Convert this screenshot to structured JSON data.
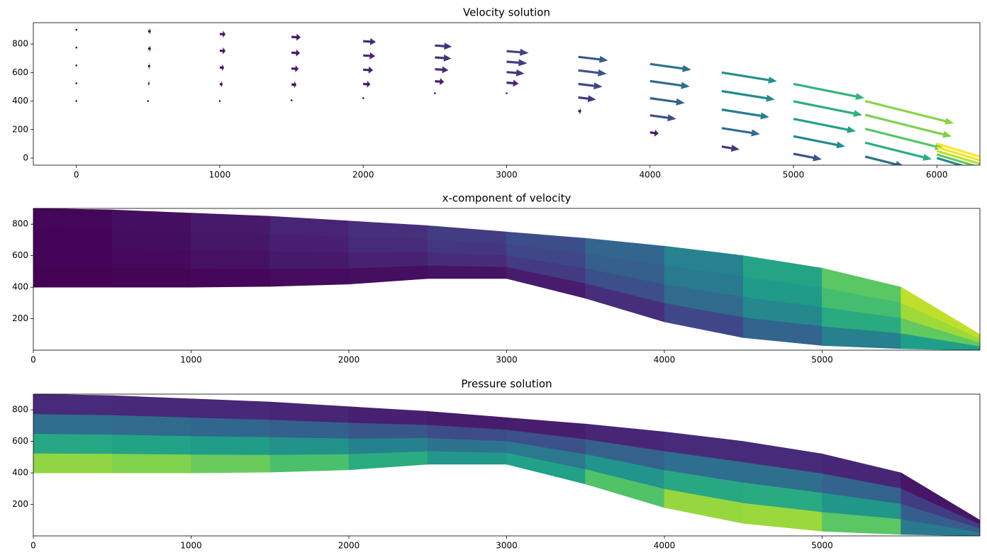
{
  "chart_data": [
    {
      "type": "quiver",
      "title": "Velocity solution",
      "xlim": [
        -300,
        6300
      ],
      "ylim": [
        -50,
        950
      ],
      "xticks": [
        0,
        1000,
        2000,
        3000,
        4000,
        5000,
        6000
      ],
      "yticks": [
        0,
        200,
        400,
        600,
        800
      ],
      "x": [
        0,
        500,
        1000,
        1500,
        2000,
        2500,
        3000,
        3500,
        4000,
        4500,
        5000,
        5500,
        6000
      ],
      "y": [
        [
          400,
          400,
          400,
          405,
          420,
          455,
          455,
          330,
          180,
          80,
          30,
          10,
          0
        ],
        [
          525,
          523,
          518,
          516,
          520,
          539,
          529,
          425,
          300,
          210,
          153,
          108,
          25
        ],
        [
          650,
          645,
          635,
          628,
          620,
          623,
          603,
          520,
          420,
          340,
          275,
          205,
          50
        ],
        [
          775,
          768,
          753,
          739,
          720,
          706,
          676,
          615,
          540,
          470,
          398,
          303,
          75
        ],
        [
          900,
          890,
          870,
          850,
          820,
          790,
          750,
          710,
          660,
          600,
          520,
          400,
          100
        ]
      ],
      "u": [
        [
          0,
          0,
          0,
          0,
          0,
          0,
          0,
          4,
          12,
          25,
          40,
          55,
          70
        ],
        [
          0,
          2,
          4,
          7,
          10,
          13,
          17,
          25,
          37,
          54,
          73,
          94,
          114
        ],
        [
          0,
          3,
          6,
          10,
          14,
          19,
          25,
          34,
          49,
          67,
          88,
          111,
          134
        ],
        [
          0,
          4,
          8,
          12,
          17,
          23,
          29,
          40,
          56,
          75,
          97,
          122,
          146
        ],
        [
          0,
          4,
          8,
          13,
          18,
          24,
          31,
          42,
          58,
          78,
          100,
          125,
          150
        ]
      ],
      "v": [
        [
          0,
          0,
          0,
          0,
          0,
          0,
          0,
          -0.5,
          -1.7,
          -4,
          -8,
          -13.8,
          -21
        ],
        [
          0,
          -0.1,
          -0.2,
          -0.4,
          -0.6,
          -0.9,
          -1.4,
          -3,
          -5.2,
          -8.6,
          -14.6,
          -23.5,
          -34.2
        ],
        [
          0,
          -0.1,
          -0.2,
          -0.5,
          -0.8,
          -1.3,
          -2,
          -4.1,
          -6.9,
          -10.7,
          -17.6,
          -27.8,
          -40.2
        ],
        [
          0,
          -0.1,
          -0.3,
          -0.6,
          -1,
          -1.6,
          -2.3,
          -4.8,
          -7.8,
          -12,
          -19.4,
          -30.5,
          -43.8
        ],
        [
          0,
          -0.1,
          -0.3,
          -0.7,
          -1.1,
          -1.7,
          -2.5,
          -5,
          -8.1,
          -12.5,
          -20,
          -31.3,
          -45
        ]
      ],
      "colormap": "viridis"
    },
    {
      "type": "contourf",
      "title": "x-component of velocity",
      "xlim": [
        0,
        6000
      ],
      "ylim": [
        0,
        900
      ],
      "xticks": [
        0,
        1000,
        2000,
        3000,
        4000,
        5000
      ],
      "yticks": [
        200,
        400,
        600,
        800
      ],
      "x": [
        0,
        500,
        1000,
        1500,
        2000,
        2500,
        3000,
        3500,
        4000,
        4500,
        5000,
        5500,
        6000
      ],
      "y": [
        [
          400,
          400,
          400,
          405,
          420,
          455,
          455,
          330,
          180,
          80,
          30,
          10,
          0
        ],
        [
          525,
          523,
          518,
          516,
          520,
          539,
          529,
          425,
          300,
          210,
          153,
          108,
          25
        ],
        [
          650,
          645,
          635,
          628,
          620,
          623,
          603,
          520,
          420,
          340,
          275,
          205,
          50
        ],
        [
          775,
          768,
          753,
          739,
          720,
          706,
          676,
          615,
          540,
          470,
          398,
          303,
          75
        ],
        [
          900,
          890,
          870,
          850,
          820,
          790,
          750,
          710,
          660,
          600,
          520,
          400,
          100
        ]
      ],
      "values": [
        [
          0,
          0,
          0,
          0,
          0,
          0,
          0,
          4,
          12,
          25,
          40,
          55,
          70
        ],
        [
          0,
          2,
          4,
          7,
          10,
          13,
          17,
          25,
          37,
          54,
          73,
          94,
          114
        ],
        [
          0,
          3,
          6,
          10,
          14,
          19,
          25,
          34,
          49,
          67,
          88,
          111,
          134
        ],
        [
          0,
          4,
          8,
          12,
          17,
          23,
          29,
          40,
          56,
          75,
          97,
          122,
          146
        ],
        [
          0,
          4,
          8,
          13,
          18,
          24,
          31,
          42,
          58,
          78,
          100,
          125,
          150
        ]
      ],
      "colormap": "viridis"
    },
    {
      "type": "contourf",
      "title": "Pressure solution",
      "xlim": [
        0,
        6000
      ],
      "ylim": [
        0,
        900
      ],
      "xticks": [
        0,
        1000,
        2000,
        3000,
        4000,
        5000
      ],
      "yticks": [
        200,
        400,
        600,
        800
      ],
      "x": [
        0,
        500,
        1000,
        1500,
        2000,
        2500,
        3000,
        3500,
        4000,
        4500,
        5000,
        5500,
        6000
      ],
      "y": [
        [
          400,
          400,
          400,
          405,
          420,
          455,
          455,
          330,
          180,
          80,
          30,
          10,
          0
        ],
        [
          525,
          523,
          518,
          516,
          520,
          539,
          529,
          425,
          300,
          210,
          153,
          108,
          25
        ],
        [
          650,
          645,
          635,
          628,
          620,
          623,
          603,
          520,
          420,
          340,
          275,
          205,
          50
        ],
        [
          775,
          768,
          753,
          739,
          720,
          706,
          676,
          615,
          540,
          470,
          398,
          303,
          75
        ],
        [
          900,
          890,
          870,
          850,
          820,
          790,
          750,
          710,
          660,
          600,
          520,
          400,
          100
        ]
      ],
      "values": [
        [
          4500,
          4410,
          4230,
          4005,
          3600,
          3015,
          2655,
          3420,
          4320,
          4680,
          4410,
          3510,
          900
        ],
        [
          3375,
          3308,
          3173,
          3004,
          2700,
          2261,
          1991,
          2565,
          3240,
          3510,
          3308,
          2633,
          675
        ],
        [
          2250,
          2205,
          2115,
          2003,
          1800,
          1508,
          1328,
          1710,
          2160,
          2340,
          2205,
          1755,
          450
        ],
        [
          1125,
          1103,
          1058,
          1001,
          900,
          754,
          664,
          855,
          1080,
          1170,
          1103,
          878,
          225
        ],
        [
          0,
          0,
          0,
          0,
          0,
          0,
          0,
          0,
          0,
          0,
          0,
          0,
          0
        ]
      ],
      "colormap": "viridis"
    }
  ]
}
